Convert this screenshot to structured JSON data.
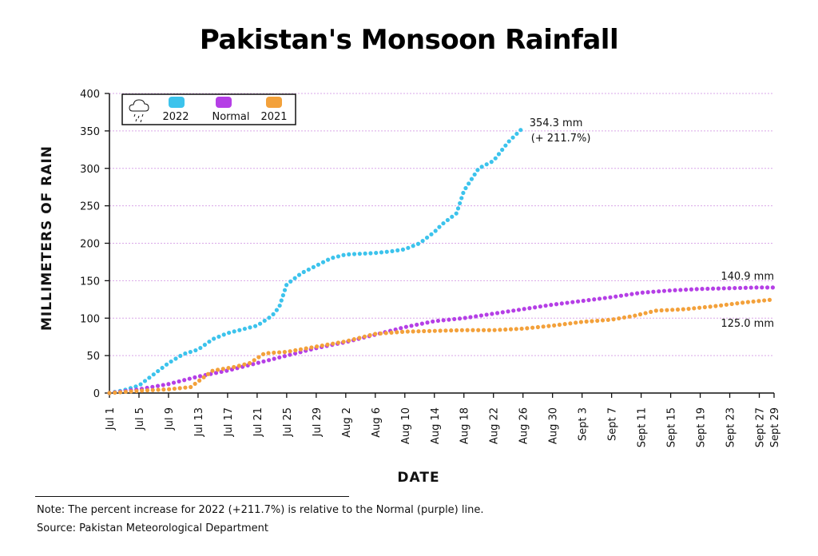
{
  "chart_data": {
    "type": "line",
    "title": "Pakistan's Monsoon Rainfall",
    "xlabel": "DATE",
    "ylabel": "MILLIMETERS OF RAIN",
    "ylim": [
      0,
      400
    ],
    "yticks": [
      0,
      50,
      100,
      150,
      200,
      250,
      300,
      350,
      400
    ],
    "xticks": [
      "Jul 1",
      "Jul 5",
      "Jul 9",
      "Jul 13",
      "Jul 17",
      "Jul 21",
      "Jul 25",
      "Jul 29",
      "Aug 2",
      "Aug 6",
      "Aug 10",
      "Aug 14",
      "Aug 18",
      "Aug 22",
      "Aug 26",
      "Aug 30",
      "Sept 3",
      "Sept 7",
      "Sept 11",
      "Sept 15",
      "Sept 19",
      "Sept 23",
      "Sept 27",
      "Sept 29"
    ],
    "grid": "horizontal dotted",
    "legend_position": "top-left",
    "series": [
      {
        "name": "2022",
        "color": "#3cc3ec",
        "x": [
          1,
          3,
          5,
          7,
          9,
          11,
          13,
          15,
          17,
          19,
          21,
          23,
          24,
          25,
          27,
          29,
          31,
          33,
          35,
          37,
          39,
          41,
          43,
          45,
          46,
          48,
          49,
          51,
          53,
          55,
          57
        ],
        "y": [
          0,
          4,
          10,
          25,
          40,
          52,
          58,
          72,
          80,
          85,
          90,
          103,
          115,
          145,
          160,
          170,
          180,
          185,
          186,
          187,
          189,
          192,
          200,
          215,
          225,
          240,
          270,
          300,
          310,
          335,
          354.3
        ]
      },
      {
        "name": "Normal",
        "color": "#b53fe6",
        "x": [
          1,
          5,
          9,
          13,
          17,
          21,
          25,
          29,
          33,
          37,
          41,
          45,
          49,
          53,
          57,
          61,
          65,
          69,
          73,
          77,
          81,
          85,
          89,
          91
        ],
        "y": [
          0,
          5,
          12,
          22,
          30,
          40,
          50,
          60,
          68,
          78,
          88,
          96,
          100,
          106,
          112,
          118,
          123,
          128,
          134,
          137,
          139,
          140,
          141,
          140.9
        ]
      },
      {
        "name": "2021",
        "color": "#f3a13b",
        "x": [
          1,
          5,
          9,
          12,
          15,
          18,
          20,
          22,
          25,
          29,
          33,
          37,
          41,
          45,
          49,
          53,
          57,
          61,
          65,
          69,
          72,
          75,
          79,
          83,
          87,
          91
        ],
        "y": [
          0,
          3,
          5,
          8,
          30,
          35,
          40,
          53,
          55,
          62,
          69,
          79,
          82,
          83,
          84,
          84,
          86,
          90,
          95,
          98,
          103,
          110,
          112,
          116,
          121,
          125
        ]
      }
    ],
    "annotations": [
      {
        "text": "354.3 mm",
        "series": "2022"
      },
      {
        "text": "(+ 211.7%)",
        "series": "2022"
      },
      {
        "text": "140.9 mm",
        "series": "Normal"
      },
      {
        "text": "125.0 mm",
        "series": "2021"
      }
    ]
  },
  "footer": {
    "note": "Note: The percent increase for 2022 (+211.7%) is relative to the Normal (purple) line.",
    "source": "Source: Pakistan Meteorological Department"
  },
  "legend": {
    "icon": "rain-cloud-icon"
  }
}
